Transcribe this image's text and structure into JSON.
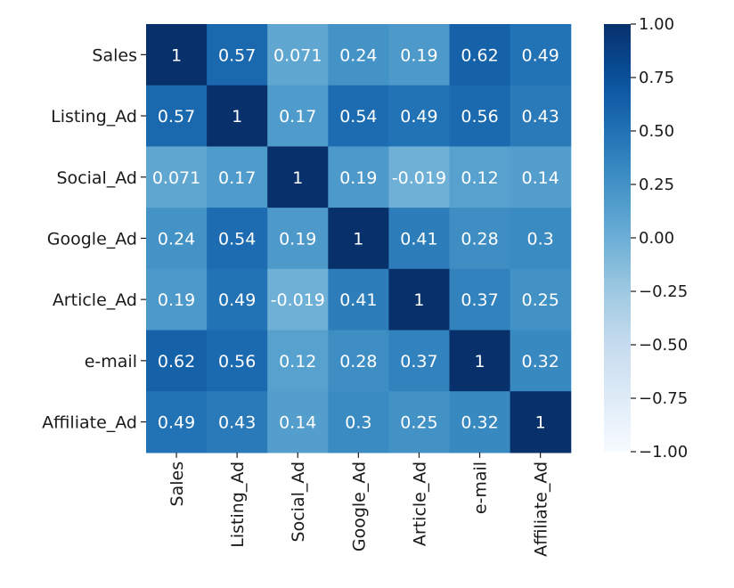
{
  "chart_data": {
    "type": "heatmap",
    "title": "",
    "xlabel": "",
    "ylabel": "",
    "row_labels": [
      "Sales",
      "Listing_Ad",
      "Social_Ad",
      "Google_Ad",
      "Article_Ad",
      "e-mail",
      "Affiliate_Ad"
    ],
    "col_labels": [
      "Sales",
      "Listing_Ad",
      "Social_Ad",
      "Google_Ad",
      "Article_Ad",
      "e-mail",
      "Affiliate_Ad"
    ],
    "values": [
      [
        1,
        0.57,
        0.071,
        0.24,
        0.19,
        0.62,
        0.49
      ],
      [
        0.57,
        1,
        0.17,
        0.54,
        0.49,
        0.56,
        0.43
      ],
      [
        0.071,
        0.17,
        1,
        0.19,
        -0.019,
        0.12,
        0.14
      ],
      [
        0.24,
        0.54,
        0.19,
        1,
        0.41,
        0.28,
        0.3
      ],
      [
        0.19,
        0.49,
        -0.019,
        0.41,
        1,
        0.37,
        0.25
      ],
      [
        0.62,
        0.56,
        0.12,
        0.28,
        0.37,
        1,
        0.32
      ],
      [
        0.49,
        0.43,
        0.14,
        0.3,
        0.25,
        0.32,
        1
      ]
    ],
    "annotations": [
      [
        "1",
        "0.57",
        "0.071",
        "0.24",
        "0.19",
        "0.62",
        "0.49"
      ],
      [
        "0.57",
        "1",
        "0.17",
        "0.54",
        "0.49",
        "0.56",
        "0.43"
      ],
      [
        "0.071",
        "0.17",
        "1",
        "0.19",
        "-0.019",
        "0.12",
        "0.14"
      ],
      [
        "0.24",
        "0.54",
        "0.19",
        "1",
        "0.41",
        "0.28",
        "0.3"
      ],
      [
        "0.19",
        "0.49",
        "-0.019",
        "0.41",
        "1",
        "0.37",
        "0.25"
      ],
      [
        "0.62",
        "0.56",
        "0.12",
        "0.28",
        "0.37",
        "1",
        "0.32"
      ],
      [
        "0.49",
        "0.43",
        "0.14",
        "0.3",
        "0.25",
        "0.32",
        "1"
      ]
    ],
    "colorbar": {
      "range": [
        -1.0,
        1.0
      ],
      "ticks": [
        1.0,
        0.75,
        0.5,
        0.25,
        0.0,
        -0.25,
        -0.5,
        -0.75,
        -1.0
      ],
      "tick_labels": [
        "1.00",
        "0.75",
        "0.50",
        "0.25",
        "0.00",
        "−0.25",
        "−0.50",
        "−0.75",
        "−1.00"
      ],
      "colormap": "Blues",
      "color_low": "#f7fbff",
      "color_high": "#08306b"
    },
    "legend": "right",
    "grid": false
  }
}
